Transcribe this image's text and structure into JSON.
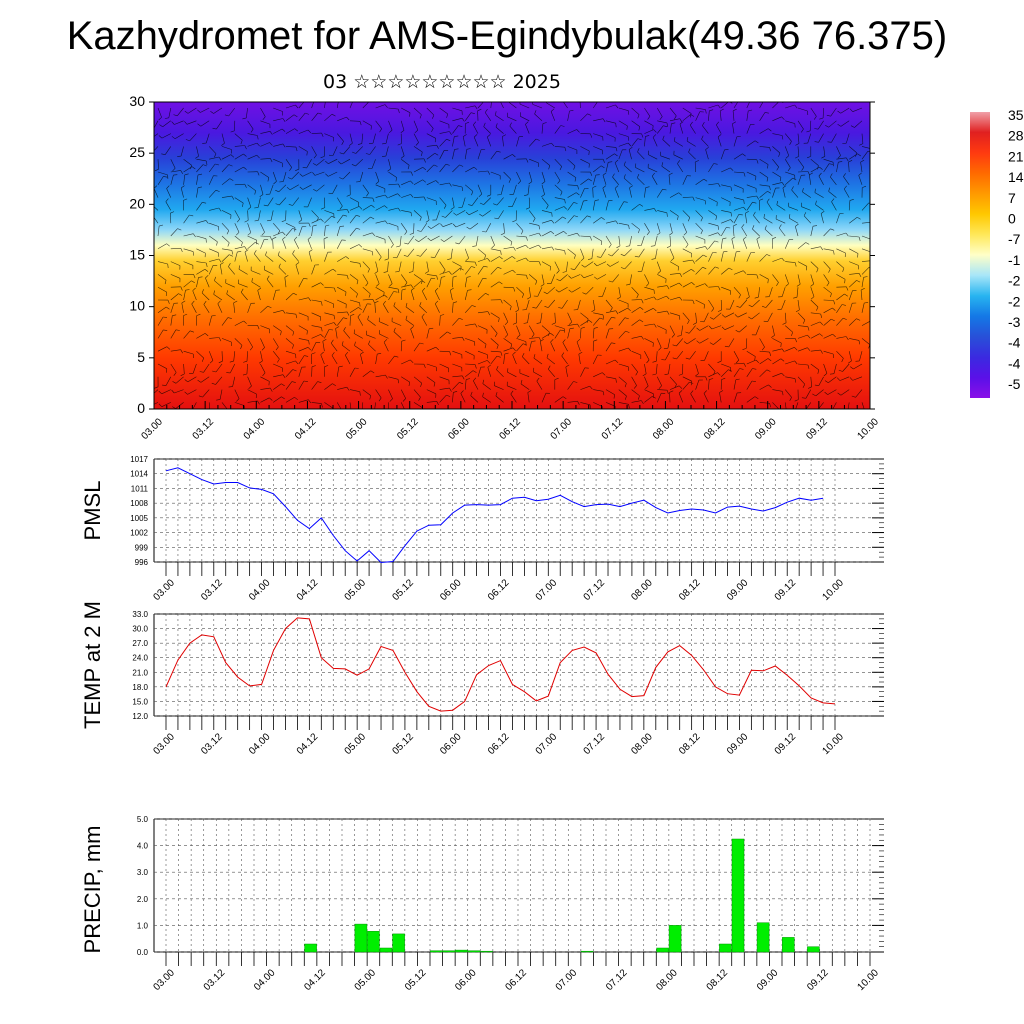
{
  "title": "Kazhydromet for AMS-Egindybulak(49.36 76.375)",
  "subtitle": "03 ☆☆☆☆☆☆☆☆☆ 2025",
  "time_labels": [
    "03.00",
    "03.12",
    "04.00",
    "04.12",
    "05.00",
    "05.12",
    "06.00",
    "06.12",
    "07.00",
    "07.12",
    "08.00",
    "08.12",
    "09.00",
    "09.12",
    "10.00"
  ],
  "colors": {
    "pmsl_line": "#0000ff",
    "temp_line": "#e00000",
    "precip_bar": "#00ee00",
    "bar_edge": "#009900"
  },
  "chart_data": [
    {
      "type": "heatmap",
      "title": "",
      "ylim": [
        0,
        30
      ],
      "yticks": [
        0,
        5,
        10,
        15,
        20,
        25,
        30
      ],
      "colorbar_labels": [
        "35",
        "28",
        "21",
        "14",
        "7",
        "0",
        "-7",
        "-1",
        "-2",
        "-2",
        "-3",
        "-4",
        "-4",
        "-5"
      ],
      "colorbar_colors": [
        "#f0a0a8",
        "#e02020",
        "#ff3a10",
        "#ff6a00",
        "#ff9a00",
        "#ffc800",
        "#ffe85a",
        "#ffffc8",
        "#a8e6f8",
        "#28b4f0",
        "#1478e6",
        "#2850d8",
        "#3a2ae0",
        "#5a10e8",
        "#8a10e8"
      ],
      "layer_colors": [
        {
          "z": 0,
          "color": "#e41010"
        },
        {
          "z": 5,
          "color": "#ff3a00"
        },
        {
          "z": 9,
          "color": "#ff7000"
        },
        {
          "z": 12,
          "color": "#ffa000"
        },
        {
          "z": 14.5,
          "color": "#ffd030"
        },
        {
          "z": 16,
          "color": "#ffffc0"
        },
        {
          "z": 17.5,
          "color": "#90d8f8"
        },
        {
          "z": 19.5,
          "color": "#20a8f0"
        },
        {
          "z": 22,
          "color": "#1e74e4"
        },
        {
          "z": 24.5,
          "color": "#2840d8"
        },
        {
          "z": 27,
          "color": "#4a18e0"
        },
        {
          "z": 30,
          "color": "#7010e4"
        }
      ]
    },
    {
      "type": "line",
      "ylabel": "PMSL",
      "ylim": [
        996,
        1017
      ],
      "yticks": [
        "996",
        "999",
        "1002",
        "1005",
        "1008",
        "1011",
        "1014",
        "1017"
      ],
      "series": [
        {
          "values": [
            1014.6,
            1015.2,
            1014.0,
            1012.8,
            1011.9,
            1012.2,
            1012.2,
            1011.1,
            1010.8,
            1009.9,
            1007.3,
            1004.5,
            1002.8,
            1005.0,
            1001.4,
            998.3,
            996.2,
            998.3,
            995.9,
            996.1,
            999.3,
            1002.3,
            1003.5,
            1003.6,
            1006.0,
            1007.6,
            1007.7,
            1007.6,
            1007.7,
            1009.0,
            1009.2,
            1008.5,
            1008.8,
            1009.6,
            1008.3,
            1007.3,
            1007.7,
            1007.8,
            1007.3,
            1008.0,
            1008.6,
            1007.1,
            1006.0,
            1006.5,
            1006.8,
            1006.6,
            1006.0,
            1007.2,
            1007.4,
            1006.8,
            1006.4,
            1007.1,
            1008.2,
            1009.0,
            1008.6,
            1009.0
          ]
        }
      ]
    },
    {
      "type": "line",
      "ylabel": "TEMP at 2 M",
      "ylim": [
        12,
        33
      ],
      "yticks": [
        "12.0",
        "15.0",
        "18.0",
        "21.0",
        "24.0",
        "27.0",
        "30.0",
        "33.0"
      ],
      "series": [
        {
          "values": [
            18.0,
            23.5,
            27.0,
            28.7,
            28.3,
            23.0,
            20.0,
            18.2,
            18.5,
            25.5,
            30.0,
            32.2,
            32.0,
            24.0,
            21.8,
            21.7,
            20.4,
            21.7,
            26.3,
            25.5,
            21.0,
            17.0,
            14.0,
            13.0,
            13.2,
            15.0,
            20.5,
            22.4,
            23.4,
            18.5,
            17.0,
            15.1,
            16.1,
            23.0,
            25.5,
            26.2,
            25.0,
            20.6,
            17.5,
            16.0,
            16.2,
            22.0,
            25.2,
            26.5,
            24.5,
            21.5,
            18.0,
            16.6,
            16.3,
            21.4,
            21.3,
            22.3,
            20.4,
            18.2,
            15.7,
            14.7,
            14.5
          ]
        }
      ]
    },
    {
      "type": "bar",
      "ylabel": "PRECIP, mm",
      "ylim": [
        0,
        5
      ],
      "yticks": [
        "0.0",
        "1.0",
        "2.0",
        "3.0",
        "4.0",
        "5.0"
      ],
      "bars": [
        {
          "x": 11.5,
          "value": 0.3
        },
        {
          "x": 15.5,
          "value": 1.05
        },
        {
          "x": 16.5,
          "value": 0.78
        },
        {
          "x": 17.5,
          "value": 0.15
        },
        {
          "x": 18.5,
          "value": 0.68
        },
        {
          "x": 21.5,
          "value": 0.05
        },
        {
          "x": 22.5,
          "value": 0.05
        },
        {
          "x": 23.5,
          "value": 0.07
        },
        {
          "x": 24.5,
          "value": 0.05
        },
        {
          "x": 25.5,
          "value": 0.03
        },
        {
          "x": 33.5,
          "value": 0.03
        },
        {
          "x": 39.5,
          "value": 0.15
        },
        {
          "x": 40.5,
          "value": 1.0
        },
        {
          "x": 44.5,
          "value": 0.3
        },
        {
          "x": 45.5,
          "value": 4.25
        },
        {
          "x": 47.5,
          "value": 1.1
        },
        {
          "x": 49.5,
          "value": 0.55
        },
        {
          "x": 51.5,
          "value": 0.2
        }
      ]
    }
  ]
}
